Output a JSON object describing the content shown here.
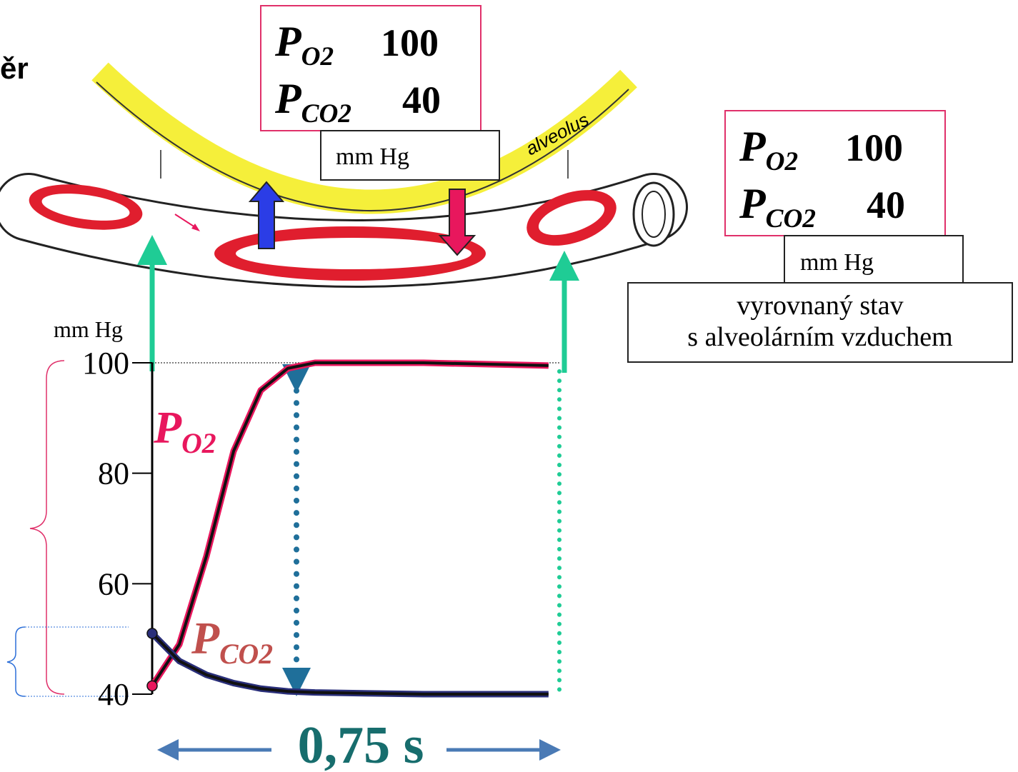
{
  "title_fragment": "ěr",
  "alveolus_label": "alveolus",
  "capillary_box": {
    "rows": [
      {
        "symbol": "P",
        "sub": "O2",
        "value": 100
      },
      {
        "symbol": "P",
        "sub": "CO2",
        "value": 40
      }
    ],
    "unit": "mm Hg"
  },
  "equilibrium_box": {
    "rows": [
      {
        "symbol": "P",
        "sub": "O2",
        "value": 100
      },
      {
        "symbol": "P",
        "sub": "CO2",
        "value": 40
      }
    ],
    "unit": "mm Hg",
    "note": [
      "vyrovnaný stav",
      "s alveolárním vzduchem"
    ]
  },
  "chart_data": {
    "type": "line",
    "ylabel": "mm Hg",
    "duration_label": "0,75 s",
    "x": [
      0,
      0.05,
      0.1,
      0.15,
      0.2,
      0.25,
      0.3,
      0.5,
      0.73
    ],
    "xlim": [
      0,
      0.75
    ],
    "ylim": [
      40,
      100
    ],
    "yticks": [
      40,
      60,
      80,
      100
    ],
    "series": [
      {
        "color": "#e8175d",
        "values": [
          41.5,
          49,
          65,
          84,
          95,
          99,
          100,
          100,
          99.5
        ]
      },
      {
        "color": "#2a2f7a",
        "values": [
          51,
          46,
          43.5,
          42,
          41,
          40.5,
          40.3,
          40,
          40
        ]
      }
    ],
    "annotations": [
      {
        "symbol": "P",
        "sub": "O2",
        "color": "#e8175d"
      },
      {
        "symbol": "P",
        "sub": "CO2",
        "color": "#c0504d"
      }
    ]
  }
}
